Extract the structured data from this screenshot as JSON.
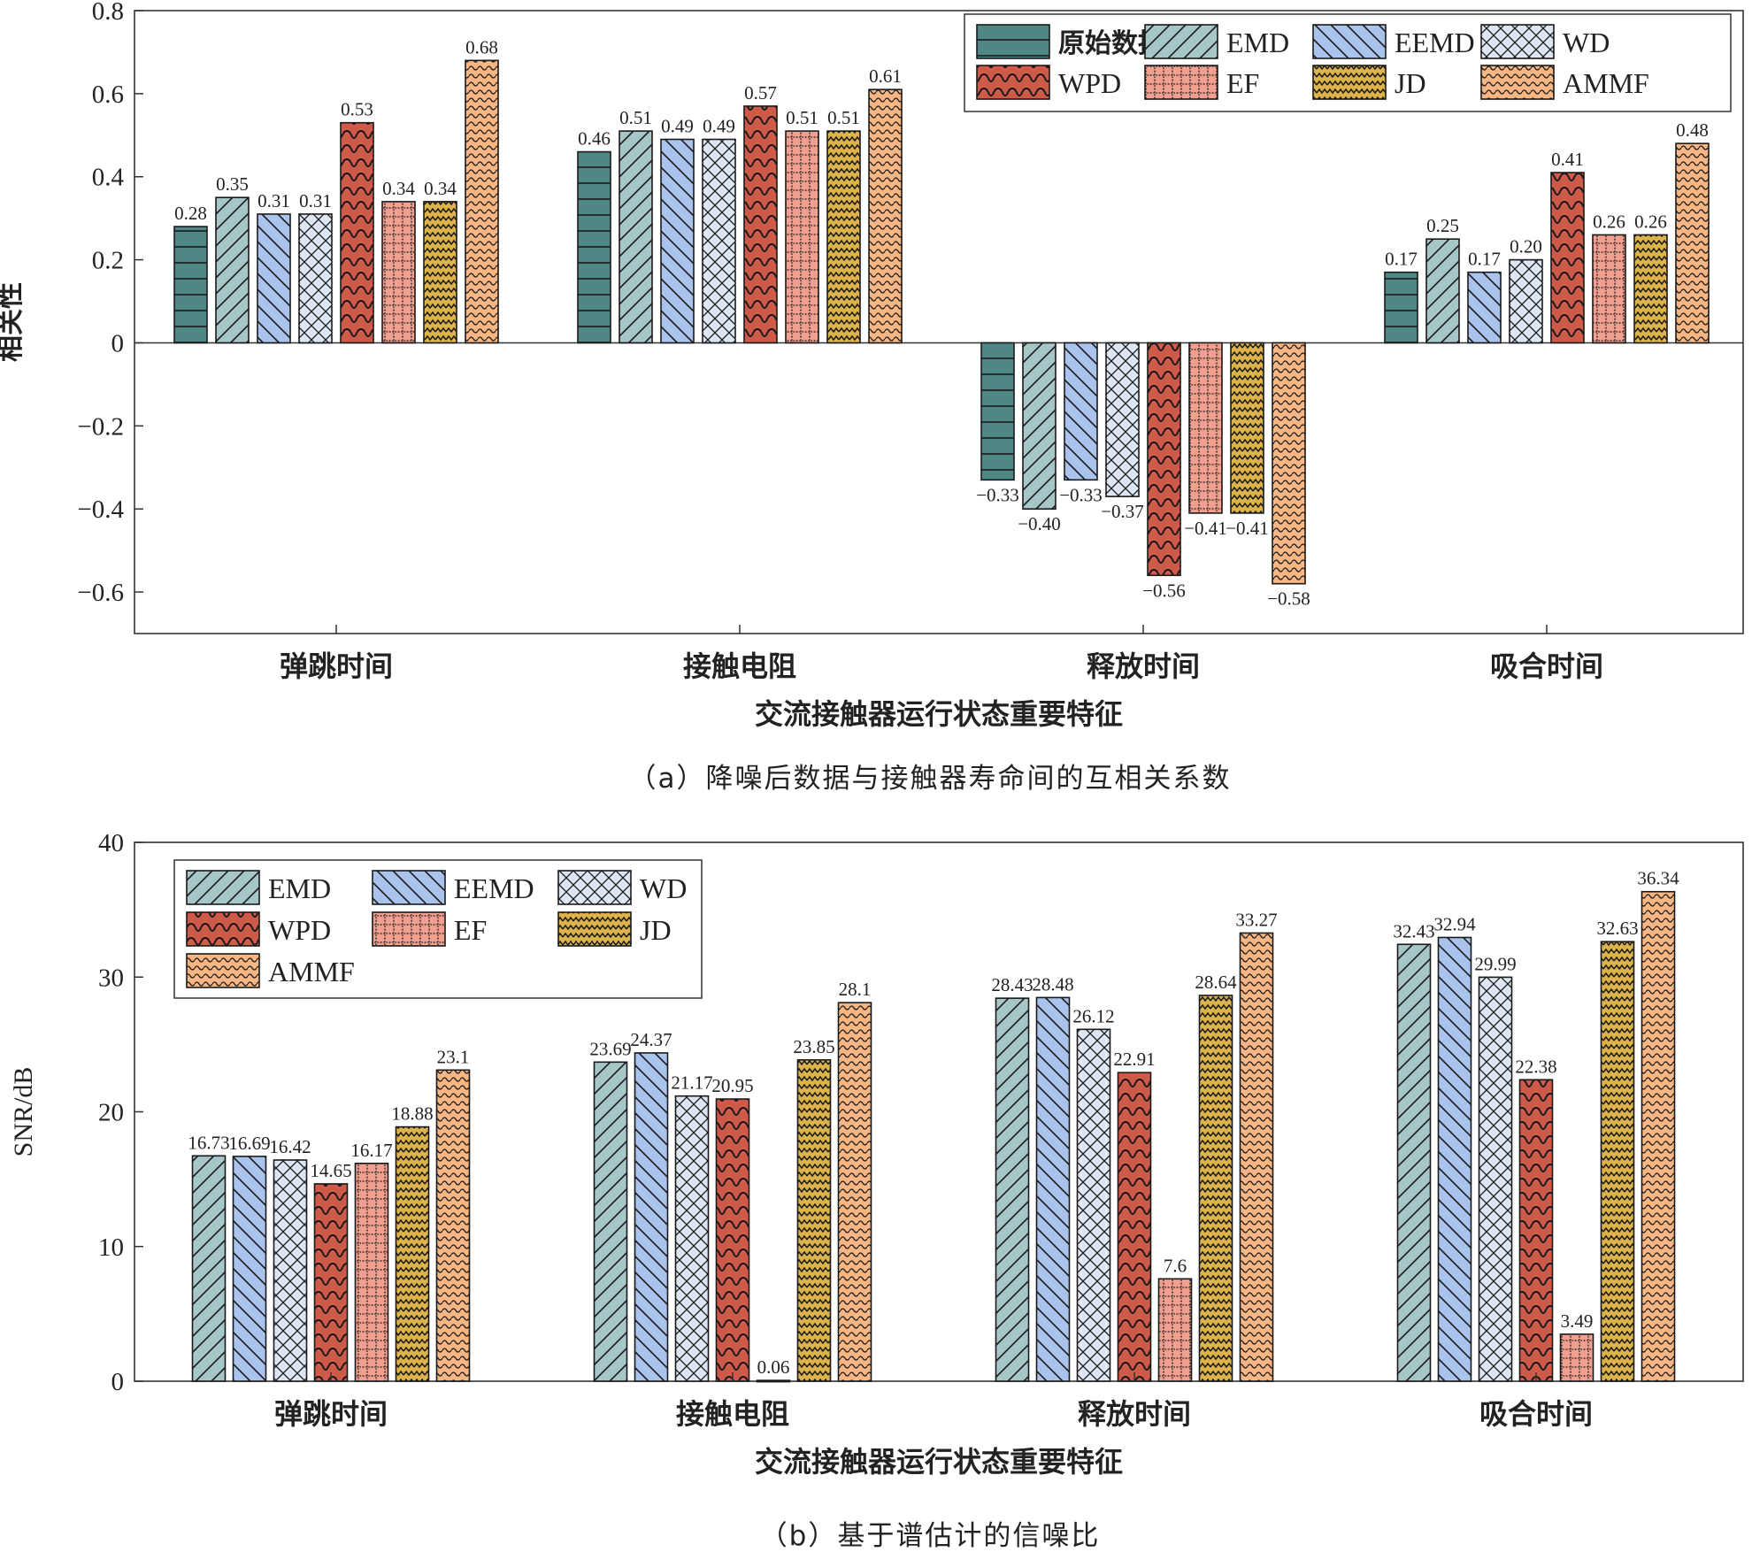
{
  "methods": [
    {
      "key": "raw",
      "name": "原始数据",
      "color": "#4e8784",
      "pattern": "hlines"
    },
    {
      "key": "emd",
      "name": "EMD",
      "color": "#a7c6c7",
      "pattern": "diag"
    },
    {
      "key": "eemd",
      "name": "EEMD",
      "color": "#a9c3ec",
      "pattern": "antidiag"
    },
    {
      "key": "wd",
      "name": "WD",
      "color": "#dde6f3",
      "pattern": "cross"
    },
    {
      "key": "wpd",
      "name": "WPD",
      "color": "#cf5a4a",
      "pattern": "wave"
    },
    {
      "key": "ef",
      "name": "EF",
      "color": "#f1a08f",
      "pattern": "dots"
    },
    {
      "key": "jd",
      "name": "JD",
      "color": "#ddb34c",
      "pattern": "zigzag"
    },
    {
      "key": "ammf",
      "name": "AMMF",
      "color": "#f7b683",
      "pattern": "smallwave"
    }
  ],
  "chart_data": [
    {
      "type": "bar",
      "title": "",
      "caption": "（a）降噪后数据与接触器寿命间的互相关系数",
      "xlabel": "交流接触器运行状态重要特征",
      "ylabel": "相关性",
      "ylim": [
        -0.7,
        0.8
      ],
      "yticks": [
        -0.6,
        -0.4,
        -0.2,
        0,
        0.2,
        0.4,
        0.6,
        0.8
      ],
      "ytick_labels": [
        "−0.6",
        "−0.4",
        "−0.2",
        "0",
        "0.2",
        "0.4",
        "0.6",
        "0.8"
      ],
      "categories": [
        "弹跳时间",
        "接触电阻",
        "释放时间",
        "吸合时间"
      ],
      "legend_position": "top-right",
      "series": [
        {
          "name": "原始数据",
          "method": "raw",
          "values": [
            0.28,
            0.46,
            -0.33,
            0.17
          ],
          "labels": [
            "0.28",
            "0.46",
            "−0.33",
            "0.17"
          ]
        },
        {
          "name": "EMD",
          "method": "emd",
          "values": [
            0.35,
            0.51,
            -0.4,
            0.25
          ],
          "labels": [
            "0.35",
            "0.51",
            "−0.40",
            "0.25"
          ]
        },
        {
          "name": "EEMD",
          "method": "eemd",
          "values": [
            0.31,
            0.49,
            -0.33,
            0.17
          ],
          "labels": [
            "0.31",
            "0.49",
            "−0.33",
            "0.17"
          ]
        },
        {
          "name": "WD",
          "method": "wd",
          "values": [
            0.31,
            0.49,
            -0.37,
            0.2
          ],
          "labels": [
            "0.31",
            "0.49",
            "−0.37",
            "0.20"
          ]
        },
        {
          "name": "WPD",
          "method": "wpd",
          "values": [
            0.53,
            0.57,
            -0.56,
            0.41
          ],
          "labels": [
            "0.53",
            "0.57",
            "−0.56",
            "0.41"
          ]
        },
        {
          "name": "EF",
          "method": "ef",
          "values": [
            0.34,
            0.51,
            -0.41,
            0.26
          ],
          "labels": [
            "0.34",
            "0.51",
            "−0.41",
            "0.26"
          ]
        },
        {
          "name": "JD",
          "method": "jd",
          "values": [
            0.34,
            0.51,
            -0.41,
            0.26
          ],
          "labels": [
            "0.34",
            "0.51",
            "−0.41",
            "0.26"
          ]
        },
        {
          "name": "AMMF",
          "method": "ammf",
          "values": [
            0.68,
            0.61,
            -0.58,
            0.48
          ],
          "labels": [
            "0.68",
            "0.61",
            "−0.58",
            "0.48"
          ]
        }
      ]
    },
    {
      "type": "bar",
      "title": "",
      "caption": "（b）基于谱估计的信噪比",
      "xlabel": "交流接触器运行状态重要特征",
      "ylabel": "SNR/dB",
      "ylim": [
        0,
        40
      ],
      "yticks": [
        0,
        10,
        20,
        30,
        40
      ],
      "ytick_labels": [
        "0",
        "10",
        "20",
        "30",
        "40"
      ],
      "categories": [
        "弹跳时间",
        "接触电阻",
        "释放时间",
        "吸合时间"
      ],
      "legend_position": "top-left",
      "series": [
        {
          "name": "EMD",
          "method": "emd",
          "values": [
            16.73,
            23.69,
            28.43,
            32.43
          ],
          "labels": [
            "16.73",
            "23.69",
            "28.43",
            "32.43"
          ]
        },
        {
          "name": "EEMD",
          "method": "eemd",
          "values": [
            16.69,
            24.37,
            28.48,
            32.94
          ],
          "labels": [
            "16.69",
            "24.37",
            "28.48",
            "32.94"
          ]
        },
        {
          "name": "WD",
          "method": "wd",
          "values": [
            16.42,
            21.17,
            26.12,
            29.99
          ],
          "labels": [
            "16.42",
            "21.17",
            "26.12",
            "29.99"
          ]
        },
        {
          "name": "WPD",
          "method": "wpd",
          "values": [
            14.65,
            20.95,
            22.91,
            22.38
          ],
          "labels": [
            "14.65",
            "20.95",
            "22.91",
            "22.38"
          ]
        },
        {
          "name": "EF",
          "method": "ef",
          "values": [
            16.17,
            0.06,
            7.6,
            3.49
          ],
          "labels": [
            "16.17",
            "0.06",
            "7.6",
            "3.49"
          ]
        },
        {
          "name": "JD",
          "method": "jd",
          "values": [
            18.88,
            23.85,
            28.64,
            32.63
          ],
          "labels": [
            "18.88",
            "23.85",
            "28.64",
            "32.63"
          ]
        },
        {
          "name": "AMMF",
          "method": "ammf",
          "values": [
            23.1,
            28.1,
            33.27,
            36.34
          ],
          "labels": [
            "23.1",
            "28.1",
            "33.27",
            "36.34"
          ]
        }
      ]
    }
  ]
}
